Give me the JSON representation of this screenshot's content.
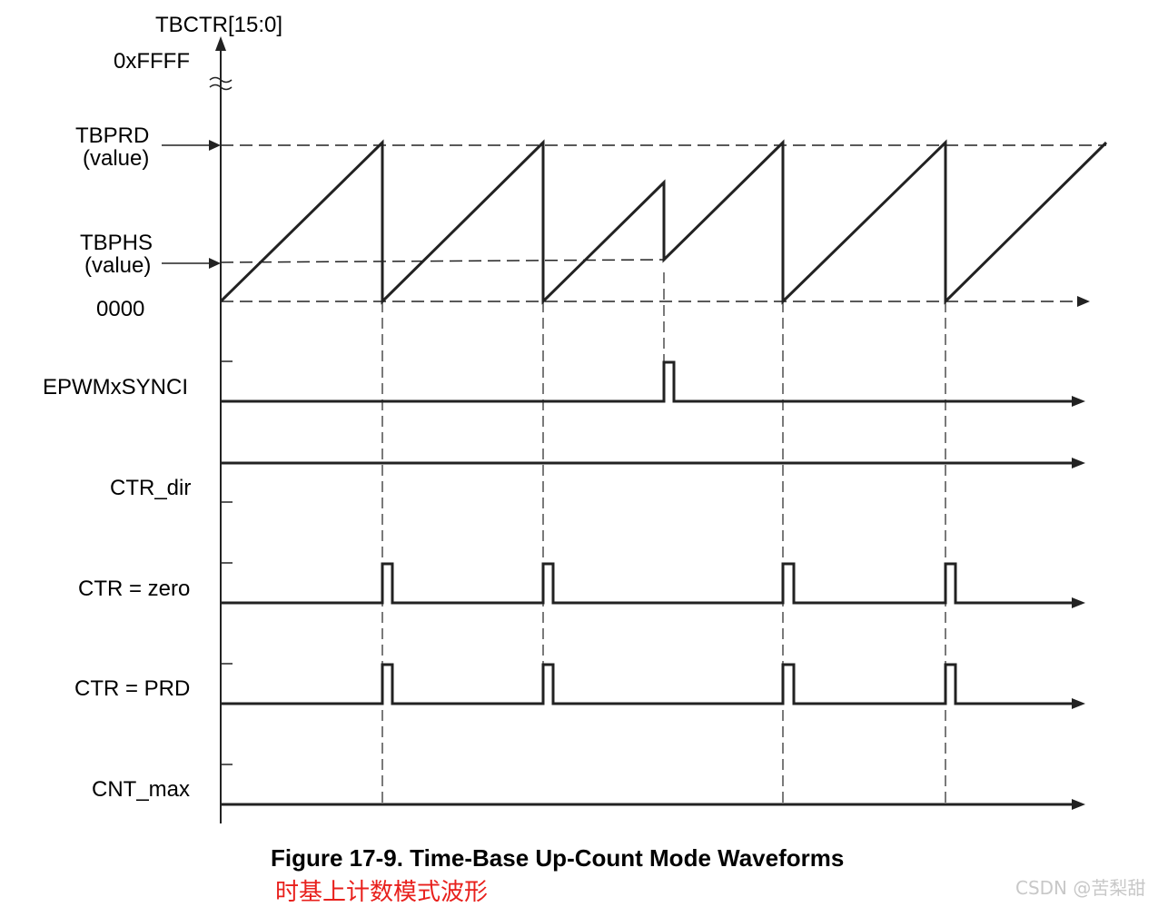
{
  "axis": {
    "title": "TBCTR[15:0]",
    "max_label": "0xFFFF",
    "tbprd_label_line1": "TBPRD",
    "tbprd_label_line2": "(value)",
    "tbphs_label_line1": "TBPHS",
    "tbphs_label_line2": "(value)",
    "zero_label": "0000"
  },
  "signals": {
    "sync": "EPWMxSYNCI",
    "dir": "CTR_dir",
    "zero": "CTR = zero",
    "prd": "CTR = PRD",
    "max": "CNT_max"
  },
  "caption": {
    "title": "Figure 17-9. Time-Base Up-Count Mode Waveforms",
    "subtitle": "时基上计数模式波形"
  },
  "watermark": "CSDN @苦梨甜",
  "colors": {
    "line": "#222222",
    "subtitle": "#e8201c",
    "watermark": "#c8c8c8"
  }
}
